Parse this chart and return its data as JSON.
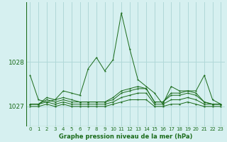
{
  "title": "Graphe pression niveau de la mer (hPa)",
  "bg_color": "#d6f0f0",
  "grid_color": "#b0d8d8",
  "line_color": "#1a6b1a",
  "xlim": [
    -0.5,
    23.5
  ],
  "ylim": [
    1026.55,
    1029.35
  ],
  "yticks": [
    1027,
    1028
  ],
  "xticks": [
    0,
    1,
    2,
    3,
    4,
    5,
    6,
    7,
    8,
    9,
    10,
    11,
    12,
    13,
    14,
    15,
    16,
    17,
    18,
    19,
    20,
    21,
    22,
    23
  ],
  "series": [
    [
      1027.7,
      1027.15,
      1027.1,
      1027.15,
      1027.35,
      1027.3,
      1027.25,
      1027.85,
      1028.1,
      1027.8,
      1028.05,
      1029.1,
      1028.3,
      1027.6,
      1027.45,
      1027.3,
      1027.05,
      1027.45,
      1027.35,
      1027.35,
      1027.35,
      1027.7,
      1027.15,
      1027.05
    ],
    [
      1027.05,
      1027.05,
      1027.2,
      1027.15,
      1027.2,
      1027.15,
      1027.1,
      1027.1,
      1027.1,
      1027.1,
      1027.2,
      1027.35,
      1027.4,
      1027.45,
      1027.4,
      1027.1,
      1027.1,
      1027.3,
      1027.3,
      1027.35,
      1027.3,
      1027.1,
      1027.05,
      1027.05
    ],
    [
      1027.05,
      1027.05,
      1027.15,
      1027.1,
      1027.15,
      1027.1,
      1027.1,
      1027.1,
      1027.1,
      1027.1,
      1027.15,
      1027.3,
      1027.35,
      1027.4,
      1027.4,
      1027.1,
      1027.1,
      1027.25,
      1027.25,
      1027.3,
      1027.25,
      1027.1,
      1027.05,
      1027.05
    ],
    [
      1027.05,
      1027.05,
      1027.1,
      1027.05,
      1027.1,
      1027.05,
      1027.05,
      1027.05,
      1027.05,
      1027.05,
      1027.1,
      1027.2,
      1027.25,
      1027.3,
      1027.3,
      1027.05,
      1027.05,
      1027.15,
      1027.15,
      1027.2,
      1027.15,
      1027.05,
      1027.05,
      1027.05
    ],
    [
      1027.0,
      1027.0,
      1027.05,
      1027.0,
      1027.05,
      1027.0,
      1027.0,
      1027.0,
      1027.0,
      1027.0,
      1027.05,
      1027.1,
      1027.15,
      1027.15,
      1027.15,
      1027.0,
      1027.0,
      1027.05,
      1027.05,
      1027.1,
      1027.05,
      1027.0,
      1027.0,
      1027.0
    ]
  ]
}
